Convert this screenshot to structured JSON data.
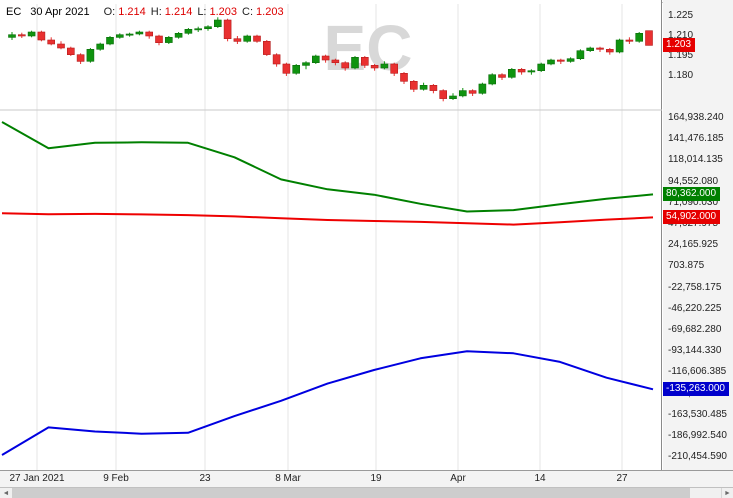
{
  "title_bar": {
    "symbol": "EC",
    "date": "30 Apr 2021",
    "open_label": "O:",
    "open": "1.214",
    "high_label": "H:",
    "high": "1.214",
    "low_label": "L:",
    "low": "1.203",
    "close_label": "C:",
    "close": "1.203"
  },
  "watermark": "EC",
  "colors": {
    "candle_up": "#0f930f",
    "candle_down": "#e93030",
    "candle_up_border": "#0a6e0a",
    "candle_down_border": "#b51c1c",
    "grid": "#e5e5e5",
    "watermark": "#d8d8d8",
    "pane_separator": "#c9c9c9",
    "price_badge_bg": "#e60000",
    "green_badge_bg": "#008000",
    "red_badge_bg": "#e60000",
    "blue_badge_bg": "#0000cc"
  },
  "chart_data": {
    "type": "candlestick_with_cot_lines",
    "title": "EC 30 Apr 2021",
    "price_pane": {
      "axis_labels": [
        "1.225",
        "1.210",
        "1.195",
        "1.180"
      ],
      "axis_values": [
        1.225,
        1.21,
        1.195,
        1.18
      ],
      "candles": [
        [
          1.209,
          1.213,
          1.207,
          1.211
        ],
        [
          1.211,
          1.2125,
          1.2085,
          1.21
        ],
        [
          1.21,
          1.214,
          1.209,
          1.213
        ],
        [
          1.213,
          1.214,
          1.206,
          1.207
        ],
        [
          1.207,
          1.209,
          1.203,
          1.204
        ],
        [
          1.204,
          1.206,
          1.2,
          1.201
        ],
        [
          1.201,
          1.202,
          1.195,
          1.196
        ],
        [
          1.196,
          1.197,
          1.189,
          1.191
        ],
        [
          1.191,
          1.201,
          1.19,
          1.2
        ],
        [
          1.2,
          1.205,
          1.199,
          1.204
        ],
        [
          1.204,
          1.21,
          1.203,
          1.209
        ],
        [
          1.209,
          1.212,
          1.208,
          1.211
        ],
        [
          1.211,
          1.2125,
          1.2095,
          1.2115
        ],
        [
          1.2115,
          1.214,
          1.2105,
          1.213
        ],
        [
          1.213,
          1.214,
          1.208,
          1.21
        ],
        [
          1.21,
          1.211,
          1.203,
          1.205
        ],
        [
          1.205,
          1.21,
          1.204,
          1.209
        ],
        [
          1.209,
          1.213,
          1.208,
          1.212
        ],
        [
          1.212,
          1.216,
          1.211,
          1.215
        ],
        [
          1.215,
          1.217,
          1.213,
          1.2155
        ],
        [
          1.2155,
          1.218,
          1.214,
          1.217
        ],
        [
          1.217,
          1.224,
          1.216,
          1.222
        ],
        [
          1.222,
          1.223,
          1.206,
          1.208
        ],
        [
          1.208,
          1.21,
          1.204,
          1.206
        ],
        [
          1.206,
          1.211,
          1.205,
          1.21
        ],
        [
          1.21,
          1.211,
          1.205,
          1.206
        ],
        [
          1.206,
          1.207,
          1.195,
          1.196
        ],
        [
          1.196,
          1.197,
          1.187,
          1.189
        ],
        [
          1.189,
          1.19,
          1.18,
          1.182
        ],
        [
          1.182,
          1.189,
          1.181,
          1.188
        ],
        [
          1.188,
          1.191,
          1.185,
          1.19
        ],
        [
          1.19,
          1.196,
          1.189,
          1.195
        ],
        [
          1.195,
          1.196,
          1.19,
          1.192
        ],
        [
          1.192,
          1.193,
          1.188,
          1.19
        ],
        [
          1.19,
          1.191,
          1.184,
          1.186
        ],
        [
          1.186,
          1.195,
          1.185,
          1.194
        ],
        [
          1.194,
          1.195,
          1.186,
          1.188
        ],
        [
          1.188,
          1.189,
          1.184,
          1.186
        ],
        [
          1.186,
          1.191,
          1.185,
          1.189
        ],
        [
          1.189,
          1.19,
          1.18,
          1.182
        ],
        [
          1.182,
          1.183,
          1.174,
          1.176
        ],
        [
          1.176,
          1.177,
          1.168,
          1.17
        ],
        [
          1.17,
          1.175,
          1.169,
          1.173
        ],
        [
          1.173,
          1.174,
          1.167,
          1.169
        ],
        [
          1.169,
          1.17,
          1.161,
          1.163
        ],
        [
          1.163,
          1.167,
          1.162,
          1.165
        ],
        [
          1.165,
          1.171,
          1.164,
          1.169
        ],
        [
          1.169,
          1.17,
          1.165,
          1.167
        ],
        [
          1.167,
          1.175,
          1.166,
          1.174
        ],
        [
          1.174,
          1.182,
          1.173,
          1.181
        ],
        [
          1.181,
          1.182,
          1.177,
          1.179
        ],
        [
          1.179,
          1.186,
          1.178,
          1.185
        ],
        [
          1.185,
          1.186,
          1.181,
          1.183
        ],
        [
          1.183,
          1.185,
          1.181,
          1.184
        ],
        [
          1.184,
          1.19,
          1.183,
          1.189
        ],
        [
          1.189,
          1.193,
          1.188,
          1.192
        ],
        [
          1.192,
          1.193,
          1.189,
          1.191
        ],
        [
          1.191,
          1.194,
          1.19,
          1.193
        ],
        [
          1.193,
          1.2,
          1.192,
          1.199
        ],
        [
          1.199,
          1.202,
          1.198,
          1.201
        ],
        [
          1.201,
          1.202,
          1.198,
          1.2
        ],
        [
          1.2,
          1.201,
          1.196,
          1.198
        ],
        [
          1.198,
          1.208,
          1.197,
          1.207
        ],
        [
          1.207,
          1.209,
          1.204,
          1.206
        ],
        [
          1.206,
          1.213,
          1.205,
          1.212
        ],
        [
          1.214,
          1.214,
          1.203,
          1.203
        ]
      ]
    },
    "indicator_pane": {
      "axis_labels": [
        "164,938.240",
        "141,476.185",
        "118,014.135",
        "94,552.080",
        "71,090.030",
        "47,627.975",
        "24,165.925",
        "703.875",
        "-22,758.175",
        "-46,220.225",
        "-69,682.280",
        "-93,144.330",
        "-116,606.385",
        "-140,068.435",
        "-163,530.485",
        "-186,992.540",
        "-210,454.590"
      ],
      "axis_values": [
        164938.24,
        141476.185,
        118014.135,
        94552.08,
        71090.03,
        47627.975,
        24165.925,
        703.875,
        -22758.175,
        -46220.225,
        -69682.28,
        -93144.33,
        -116606.385,
        -140068.435,
        -163530.485,
        -186992.54,
        -210454.59
      ],
      "series": [
        {
          "name": "green-line",
          "color": "#008000",
          "values": [
            160500,
            131500,
            137500,
            138000,
            137500,
            121500,
            97000,
            86000,
            80000,
            70000,
            61500,
            63000,
            69500,
            75500,
            80362
          ]
        },
        {
          "name": "red-line",
          "color": "#ee0000",
          "values": [
            59500,
            58500,
            58800,
            58200,
            57500,
            56000,
            54000,
            52000,
            51000,
            50000,
            48500,
            47000,
            49500,
            52500,
            54902
          ]
        },
        {
          "name": "blue-line",
          "color": "#0000e0",
          "values": [
            -208000,
            -177500,
            -182000,
            -184500,
            -183500,
            -165000,
            -148000,
            -129000,
            -114000,
            -101000,
            -93144,
            -95500,
            -105000,
            -122500,
            -135263
          ]
        }
      ]
    },
    "badges": [
      {
        "pane": "price",
        "label": "1.203",
        "value": 1.203,
        "color": "#e60000"
      },
      {
        "pane": "indicator",
        "label": "80,362.000",
        "value": 80362.0,
        "color": "#008000"
      },
      {
        "pane": "indicator",
        "label": "54,902.000",
        "value": 54902.0,
        "color": "#e60000"
      },
      {
        "pane": "indicator",
        "label": "-135,263.000",
        "value": -135263.0,
        "color": "#0000cc"
      }
    ],
    "x_axis": {
      "labels": [
        "27 Jan 2021",
        "9 Feb",
        "23",
        "8 Mar",
        "19",
        "Apr",
        "14",
        "27"
      ]
    }
  },
  "scrollbar": {
    "left_arrow": "◄",
    "right_arrow": "►"
  }
}
